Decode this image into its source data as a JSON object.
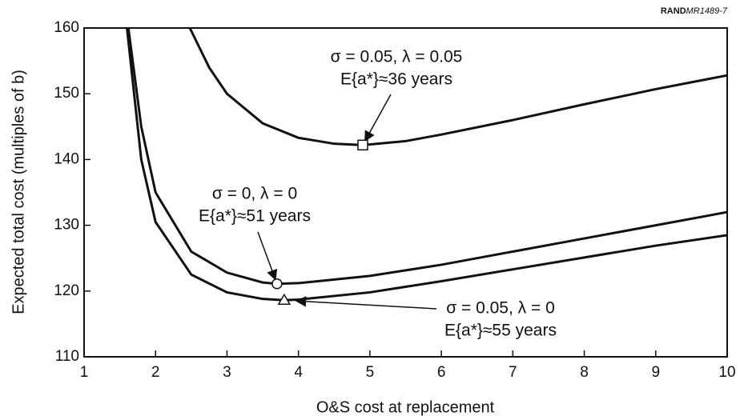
{
  "chart_data": {
    "type": "line",
    "source": {
      "org": "RAND",
      "id": "MR1489-7"
    },
    "xlabel": "O&S cost at replacement",
    "ylabel": "Expected total cost (multiples of b)",
    "xlim": [
      1,
      10
    ],
    "xticks": [
      1,
      2,
      3,
      4,
      5,
      6,
      7,
      8,
      9,
      10
    ],
    "ylim": [
      110,
      160
    ],
    "yticks": [
      110,
      120,
      130,
      140,
      150,
      160
    ],
    "series": [
      {
        "color": "#111111",
        "marker": "square",
        "x": [
          2.48,
          2.75,
          3,
          3.5,
          4,
          4.5,
          4.9,
          5.5,
          6,
          7,
          8,
          9,
          10
        ],
        "values": [
          160,
          154,
          150,
          145.5,
          143.3,
          142.4,
          142.2,
          142.8,
          143.8,
          146,
          148.4,
          150.7,
          152.8
        ],
        "optimum": {
          "x": 4.9,
          "y": 142.2
        },
        "annotation": [
          "σ = 0.05, λ = 0.05",
          "E{a*}≈36 years"
        ]
      },
      {
        "color": "#111111",
        "marker": "circle",
        "x": [
          1.62,
          1.8,
          2,
          2.5,
          3,
          3.5,
          3.7,
          4,
          5,
          6,
          7,
          8,
          9,
          10
        ],
        "values": [
          160,
          145,
          135,
          126,
          122.8,
          121.3,
          121.1,
          121.2,
          122.3,
          124,
          126,
          128,
          130,
          132
        ],
        "optimum": {
          "x": 3.7,
          "y": 121.1
        },
        "annotation": [
          "σ = 0, λ = 0",
          "E{a*}≈51 years"
        ]
      },
      {
        "color": "#111111",
        "marker": "triangle",
        "x": [
          1.6,
          1.8,
          2,
          2.5,
          3,
          3.5,
          3.8,
          4,
          5,
          6,
          7,
          8,
          9,
          10
        ],
        "values": [
          160,
          140,
          130.5,
          122.5,
          119.8,
          118.8,
          118.6,
          118.7,
          119.8,
          121.5,
          123.3,
          125.1,
          126.9,
          128.5
        ],
        "optimum": {
          "x": 3.8,
          "y": 118.6
        },
        "annotation": [
          "σ = 0.05, λ = 0",
          "E{a*}≈55 years"
        ]
      }
    ]
  }
}
